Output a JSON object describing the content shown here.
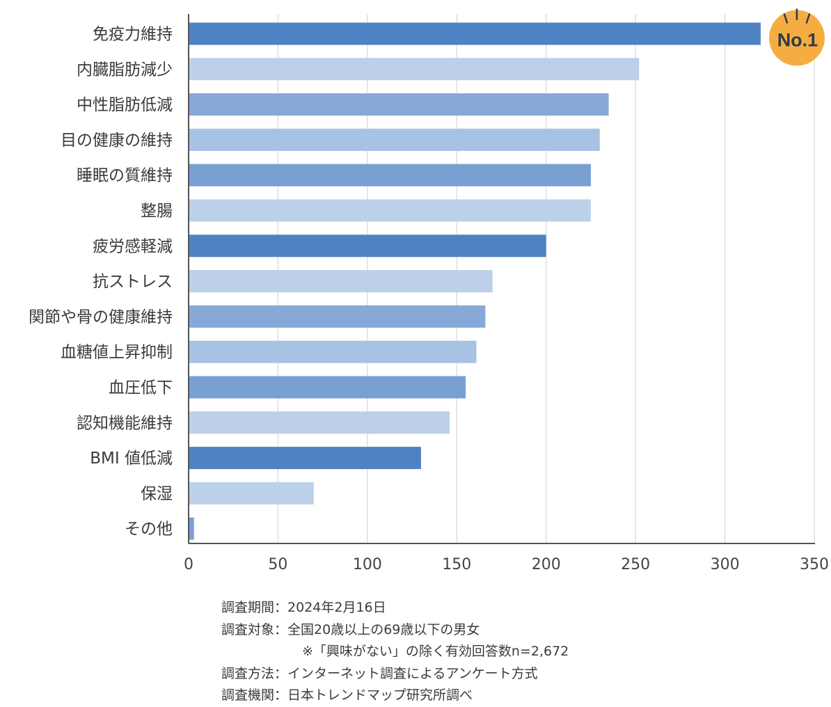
{
  "chart_data": {
    "type": "bar",
    "orientation": "horizontal",
    "categories": [
      "免疫力維持",
      "内臓脂肪減少",
      "中性脂肪低減",
      "目の健康の維持",
      "睡眠の質維持",
      "整腸",
      "疲労感軽減",
      "抗ストレス",
      "関節や骨の健康維持",
      "血糖値上昇抑制",
      "血圧低下",
      "認知機能維持",
      "BMI 値低減",
      "保湿",
      "その他"
    ],
    "values": [
      320,
      252,
      235,
      230,
      225,
      225,
      200,
      170,
      166,
      161,
      155,
      146,
      130,
      70,
      3
    ],
    "bar_colors": [
      "#4f82c3",
      "#bcd0e9",
      "#87a9d7",
      "#a8c2e3",
      "#7a9fd3",
      "#bcd0e9",
      "#4f82c3",
      "#bcd0e9",
      "#87a9d7",
      "#a8c2e3",
      "#7a9fd3",
      "#bcd0e9",
      "#4f82c3",
      "#bcd0e9",
      "#7a9fd3"
    ],
    "xlim": [
      0,
      350
    ],
    "xticks": [
      "0",
      "50",
      "100",
      "150",
      "200",
      "250",
      "300",
      "350"
    ],
    "grid": true,
    "badge": {
      "text": "No.1",
      "color": "#f5ad42",
      "attached_to": "免疫力維持"
    }
  },
  "notes": {
    "period_label": "調査期間：",
    "period_value": "2024年2月16日",
    "target_label": "調査対象：",
    "target_value": "全国20歳以上の69歳以下の男女",
    "target_note": "※「興味がない」の除く有効回答数n=2,672",
    "method_label": "調査方法：",
    "method_value": "インターネット調査によるアンケート方式",
    "org_label": "調査機関：",
    "org_value": "日本トレンドマップ研究所調べ"
  }
}
